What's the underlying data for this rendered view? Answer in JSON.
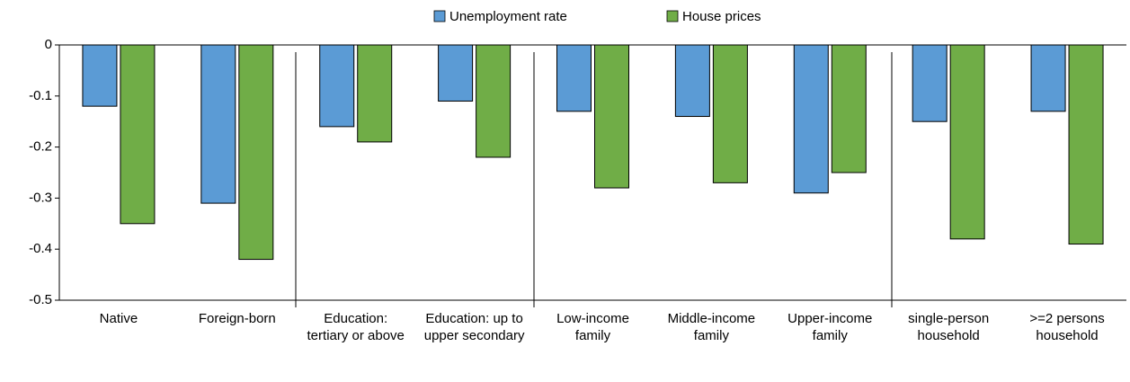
{
  "chart_data": {
    "type": "bar",
    "categories": [
      "Native",
      "Foreign-born",
      "Education: tertiary or above",
      "Education: up to upper secondary",
      "Low-income family",
      "Middle-income family",
      "Upper-income family",
      "single-person household",
      ">=2 persons household"
    ],
    "series": [
      {
        "name": "Unemployment rate",
        "color": "#5b9bd5",
        "values": [
          -0.12,
          -0.31,
          -0.16,
          -0.11,
          -0.13,
          -0.14,
          -0.29,
          -0.15,
          -0.13
        ]
      },
      {
        "name": "House prices",
        "color": "#70ad47",
        "values": [
          -0.35,
          -0.42,
          -0.19,
          -0.22,
          -0.28,
          -0.27,
          -0.25,
          -0.38,
          -0.39
        ]
      }
    ],
    "ylim": [
      -0.5,
      0
    ],
    "yticks": [
      0,
      -0.1,
      -0.2,
      -0.3,
      -0.4,
      -0.5
    ],
    "legend": "top"
  }
}
